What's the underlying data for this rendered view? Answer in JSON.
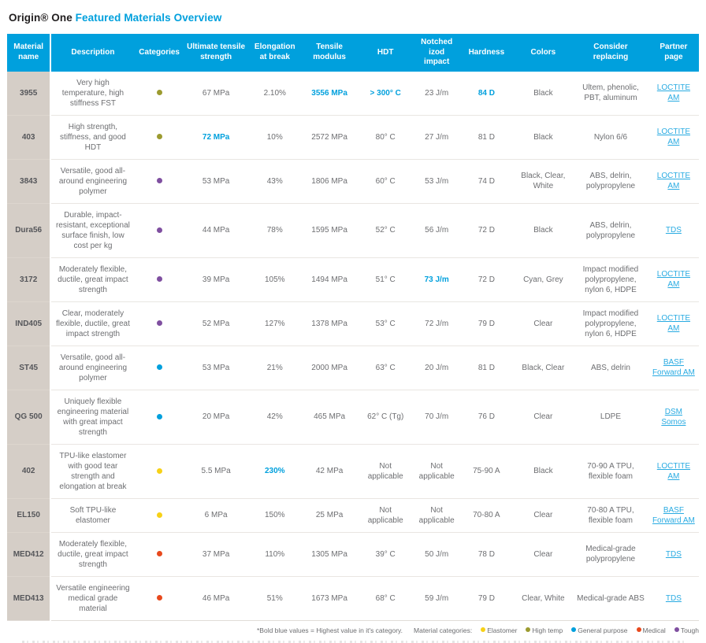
{
  "title": {
    "prefix": "Origin® One ",
    "highlight": "Featured Materials Overview"
  },
  "categories": {
    "elastomer": {
      "label": "Elastomer",
      "color": "#f7d117"
    },
    "high-temp": {
      "label": "High temp",
      "color": "#9c9b30"
    },
    "general-purpose": {
      "label": "General purpose",
      "color": "#00a0dd"
    },
    "medical": {
      "label": "Medical",
      "color": "#e8491d"
    },
    "tough": {
      "label": "Tough",
      "color": "#7f4fa0"
    }
  },
  "legend_order": [
    "elastomer",
    "high-temp",
    "general-purpose",
    "medical",
    "tough"
  ],
  "footnote": {
    "note": "*Bold blue values = Highest value in it's category.",
    "legend_label": "Material categories:"
  },
  "table": {
    "columns": [
      "Material name",
      "Description",
      "Categories",
      "Ultimate tensile strength",
      "Elongation at break",
      "Tensile modulus",
      "HDT",
      "Notched izod impact",
      "Hardness",
      "Colors",
      "Consider replacing",
      "Partner page"
    ],
    "rows": [
      {
        "name": "3955",
        "description": "Very high temperature, high stiffness FST",
        "category": "high-temp",
        "uts": "67 MPa",
        "elongation": "2.10%",
        "modulus": "3556 MPa",
        "hdt": "> 300° C",
        "izod": "23 J/m",
        "hardness": "84 D",
        "colors": "Black",
        "replacing": "Ultem, phenolic, PBT, aluminum",
        "partner": "LOCTITE AM",
        "highlights": [
          "modulus",
          "hdt",
          "hardness"
        ]
      },
      {
        "name": "403",
        "description": "High strength, stiffness, and good HDT",
        "category": "high-temp",
        "uts": "72 MPa",
        "elongation": "10%",
        "modulus": "2572 MPa",
        "hdt": "80° C",
        "izod": "27 J/m",
        "hardness": "81 D",
        "colors": "Black",
        "replacing": "Nylon 6/6",
        "partner": "LOCTITE AM",
        "highlights": [
          "uts"
        ]
      },
      {
        "name": "3843",
        "description": "Versatile, good all-around engineering polymer",
        "category": "tough",
        "uts": "53 MPa",
        "elongation": "43%",
        "modulus": "1806 MPa",
        "hdt": "60° C",
        "izod": "53 J/m",
        "hardness": "74 D",
        "colors": "Black, Clear, White",
        "replacing": "ABS, delrin, polypropylene",
        "partner": "LOCTITE AM",
        "highlights": []
      },
      {
        "name": "Dura56",
        "description": "Durable, impact-resistant, exceptional surface finish, low cost per kg",
        "category": "tough",
        "uts": "44 MPa",
        "elongation": "78%",
        "modulus": "1595 MPa",
        "hdt": "52° C",
        "izod": "56 J/m",
        "hardness": "72 D",
        "colors": "Black",
        "replacing": "ABS, delrin, polypropylene",
        "partner": "TDS",
        "highlights": []
      },
      {
        "name": "3172",
        "description": "Moderately flexible, ductile, great impact strength",
        "category": "tough",
        "uts": "39 MPa",
        "elongation": "105%",
        "modulus": "1494 MPa",
        "hdt": "51° C",
        "izod": "73 J/m",
        "hardness": "72 D",
        "colors": "Cyan, Grey",
        "replacing": "Impact modified polypropylene, nylon 6, HDPE",
        "partner": "LOCTITE AM",
        "highlights": [
          "izod"
        ]
      },
      {
        "name": "IND405",
        "description": "Clear, moderately flexible, ductile, great impact strength",
        "category": "tough",
        "uts": "52 MPa",
        "elongation": "127%",
        "modulus": "1378 MPa",
        "hdt": "53° C",
        "izod": "72 J/m",
        "hardness": "79 D",
        "colors": "Clear",
        "replacing": "Impact modified polypropylene, nylon 6, HDPE",
        "partner": "LOCTITE AM",
        "highlights": []
      },
      {
        "name": "ST45",
        "description": "Versatile, good all-around engineering polymer",
        "category": "general-purpose",
        "uts": "53 MPa",
        "elongation": "21%",
        "modulus": "2000 MPa",
        "hdt": "63° C",
        "izod": "20 J/m",
        "hardness": "81 D",
        "colors": "Black, Clear",
        "replacing": "ABS, delrin",
        "partner": "BASF Forward AM",
        "highlights": []
      },
      {
        "name": "QG 500",
        "description": "Uniquely flexible engineering material with great impact strength",
        "category": "general-purpose",
        "uts": "20 MPa",
        "elongation": "42%",
        "modulus": "465 MPa",
        "hdt": "62° C (Tg)",
        "izod": "70 J/m",
        "hardness": "76 D",
        "colors": "Clear",
        "replacing": "LDPE",
        "partner": "DSM Somos",
        "highlights": []
      },
      {
        "name": "402",
        "description": "TPU-like elastomer with good tear strength and elongation at break",
        "category": "elastomer",
        "uts": "5.5 MPa",
        "elongation": "230%",
        "modulus": "42 MPa",
        "hdt": "Not applicable",
        "izod": "Not applicable",
        "hardness": "75-90 A",
        "colors": "Black",
        "replacing": "70-90 A TPU, flexible foam",
        "partner": "LOCTITE AM",
        "highlights": [
          "elongation"
        ]
      },
      {
        "name": "EL150",
        "description": "Soft TPU-like elastomer",
        "category": "elastomer",
        "uts": "6 MPa",
        "elongation": "150%",
        "modulus": "25 MPa",
        "hdt": "Not applicable",
        "izod": "Not applicable",
        "hardness": "70-80 A",
        "colors": "Clear",
        "replacing": "70-80 A TPU, flexible foam",
        "partner": "BASF Forward AM",
        "highlights": []
      },
      {
        "name": "MED412",
        "description": "Moderately flexible, ductile, great impact strength",
        "category": "medical",
        "uts": "37 MPa",
        "elongation": "110%",
        "modulus": "1305 MPa",
        "hdt": "39° C",
        "izod": "50 J/m",
        "hardness": "78 D",
        "colors": "Clear",
        "replacing": "Medical-grade polypropylene",
        "partner": "TDS",
        "highlights": []
      },
      {
        "name": "MED413",
        "description": "Versatile engineering medical grade material",
        "category": "medical",
        "uts": "46 MPa",
        "elongation": "51%",
        "modulus": "1673 MPa",
        "hdt": "68° C",
        "izod": "59 J/m",
        "hardness": "79 D",
        "colors": "Clear, White",
        "replacing": "Medical-grade ABS",
        "partner": "TDS",
        "highlights": []
      }
    ]
  }
}
